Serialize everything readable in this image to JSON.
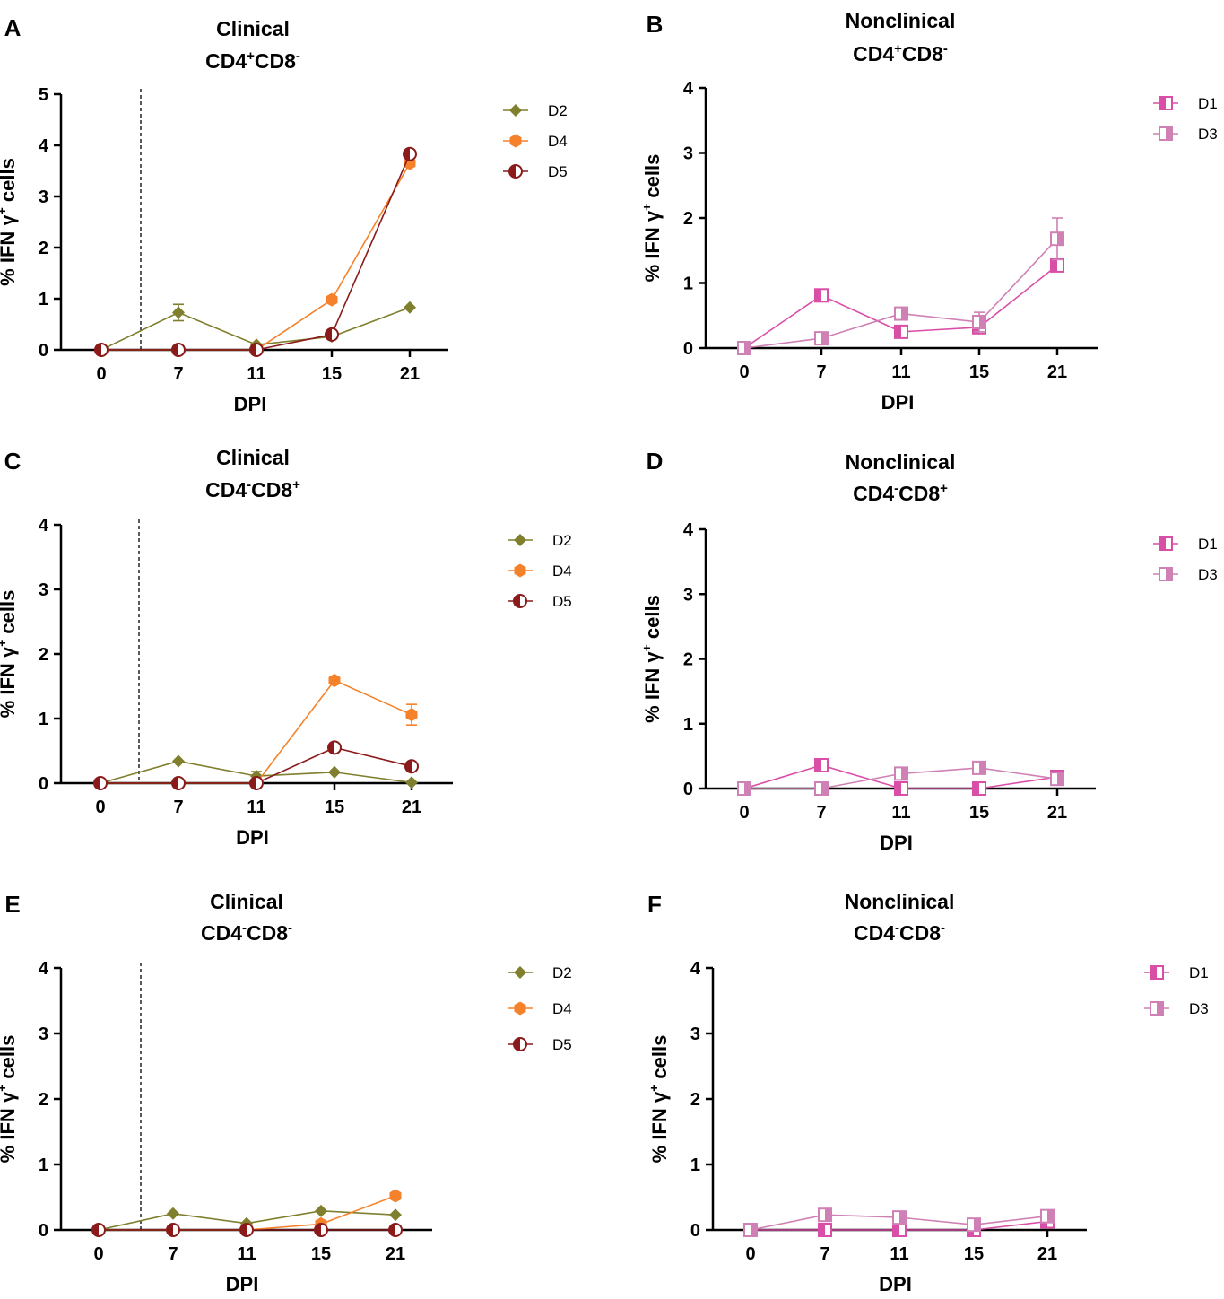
{
  "chart_data": [
    {
      "panel_letter": "A",
      "type": "line",
      "title": [
        "Clinical",
        "CD4",
        "+",
        "CD8",
        "-"
      ],
      "xlabel": "DPI",
      "ylabel_parts": [
        "% IFN γ",
        "+",
        " cells"
      ],
      "x": [
        0,
        7,
        11,
        15,
        21
      ],
      "ylim": [
        0,
        5
      ],
      "yticks": [
        0,
        1,
        2,
        3,
        4,
        5
      ],
      "vline_x": 3.5,
      "series": [
        {
          "name": "D2",
          "color": "#7f7f2d",
          "marker": "diamond",
          "values": [
            0.0,
            0.73,
            0.1,
            0.26,
            0.83
          ],
          "err": [
            0,
            0.16,
            0,
            0,
            0
          ]
        },
        {
          "name": "D4",
          "color": "#f5812a",
          "marker": "hexagon",
          "values": [
            0.0,
            0.0,
            0.0,
            0.98,
            3.65
          ],
          "err": [
            0,
            0,
            0,
            0,
            0
          ]
        },
        {
          "name": "D5",
          "color": "#8b1a1a",
          "marker": "halfcircle",
          "values": [
            0.0,
            0.0,
            0.0,
            0.3,
            3.83
          ],
          "err": [
            0,
            0,
            0,
            0,
            0
          ]
        }
      ]
    },
    {
      "panel_letter": "B",
      "type": "line",
      "title": [
        "Nonclinical",
        "CD4",
        "+",
        "CD8",
        "-"
      ],
      "xlabel": "DPI",
      "ylabel_parts": [
        "% IFN γ",
        "+",
        " cells"
      ],
      "x": [
        0,
        7,
        11,
        15,
        21
      ],
      "ylim": [
        0,
        4
      ],
      "yticks": [
        0,
        1,
        2,
        3,
        4
      ],
      "series": [
        {
          "name": "D1",
          "color": "#d94fa8",
          "marker": "halfsquare-left",
          "values": [
            0.0,
            0.81,
            0.25,
            0.32,
            1.27
          ],
          "err": [
            0,
            0,
            0,
            0,
            0
          ]
        },
        {
          "name": "D3",
          "color": "#cf80b4",
          "marker": "halfsquare-right",
          "values": [
            0.0,
            0.15,
            0.53,
            0.4,
            1.68
          ],
          "err": [
            0,
            0,
            0,
            0.15,
            0.32
          ]
        }
      ]
    },
    {
      "panel_letter": "C",
      "type": "line",
      "title": [
        "Clinical",
        "CD4",
        "-",
        "CD8",
        "+"
      ],
      "xlabel": "DPI",
      "ylabel_parts": [
        "% IFN γ",
        "+",
        " cells"
      ],
      "x": [
        0,
        7,
        11,
        15,
        21
      ],
      "ylim": [
        0,
        4
      ],
      "yticks": [
        0,
        1,
        2,
        3,
        4
      ],
      "vline_x": 3.5,
      "series": [
        {
          "name": "D2",
          "color": "#7f7f2d",
          "marker": "diamond",
          "values": [
            0.0,
            0.34,
            0.11,
            0.17,
            0.01
          ],
          "err": [
            0,
            0,
            0.07,
            0,
            0
          ]
        },
        {
          "name": "D4",
          "color": "#f5812a",
          "marker": "hexagon",
          "values": [
            0.0,
            0.0,
            0.0,
            1.59,
            1.06
          ],
          "err": [
            0,
            0,
            0,
            0,
            0.16
          ]
        },
        {
          "name": "D5",
          "color": "#8b1a1a",
          "marker": "halfcircle",
          "values": [
            0.0,
            0.0,
            0.0,
            0.55,
            0.26
          ],
          "err": [
            0,
            0,
            0,
            0,
            0
          ]
        }
      ]
    },
    {
      "panel_letter": "D",
      "type": "line",
      "title": [
        "Nonclinical",
        "CD4",
        "-",
        "CD8",
        "+"
      ],
      "xlabel": "DPI",
      "ylabel_parts": [
        "% IFN γ",
        "+",
        " cells"
      ],
      "x": [
        0,
        7,
        11,
        15,
        21
      ],
      "ylim": [
        0,
        4
      ],
      "yticks": [
        0,
        1,
        2,
        3,
        4
      ],
      "series": [
        {
          "name": "D1",
          "color": "#d94fa8",
          "marker": "halfsquare-left",
          "values": [
            0.0,
            0.36,
            0.0,
            0.0,
            0.18
          ],
          "err": [
            0,
            0,
            0,
            0,
            0
          ]
        },
        {
          "name": "D3",
          "color": "#cf80b4",
          "marker": "halfsquare-right",
          "values": [
            0.0,
            0.0,
            0.23,
            0.32,
            0.15
          ],
          "err": [
            0,
            0,
            0,
            0,
            0
          ]
        }
      ]
    },
    {
      "panel_letter": "E",
      "type": "line",
      "title": [
        "Clinical",
        "CD4",
        "-",
        "CD8",
        "-"
      ],
      "xlabel": "DPI",
      "ylabel_parts": [
        "% IFN γ",
        "+",
        " cells"
      ],
      "x": [
        0,
        7,
        11,
        15,
        21
      ],
      "ylim": [
        0,
        4
      ],
      "yticks": [
        0,
        1,
        2,
        3,
        4
      ],
      "vline_x": 3.5,
      "series": [
        {
          "name": "D2",
          "color": "#7f7f2d",
          "marker": "diamond",
          "values": [
            0.0,
            0.25,
            0.1,
            0.29,
            0.23
          ],
          "err": [
            0,
            0,
            0,
            0,
            0
          ]
        },
        {
          "name": "D4",
          "color": "#f5812a",
          "marker": "hexagon",
          "values": [
            0.0,
            0.0,
            0.0,
            0.09,
            0.52
          ],
          "err": [
            0,
            0,
            0,
            0,
            0
          ]
        },
        {
          "name": "D5",
          "color": "#8b1a1a",
          "marker": "halfcircle",
          "values": [
            0.0,
            0.0,
            0.0,
            0.0,
            0.0
          ],
          "err": [
            0,
            0,
            0,
            0,
            0
          ]
        }
      ]
    },
    {
      "panel_letter": "F",
      "type": "line",
      "title": [
        "Nonclinical",
        "CD4",
        "-",
        "CD8",
        "-"
      ],
      "xlabel": "DPI",
      "ylabel_parts": [
        "% IFN γ",
        "+",
        " cells"
      ],
      "x": [
        0,
        7,
        11,
        15,
        21
      ],
      "ylim": [
        0,
        4
      ],
      "yticks": [
        0,
        1,
        2,
        3,
        4
      ],
      "series": [
        {
          "name": "D1",
          "color": "#d94fa8",
          "marker": "halfsquare-left",
          "values": [
            0.0,
            0.0,
            0.0,
            0.0,
            0.13
          ],
          "err": [
            0,
            0,
            0,
            0,
            0
          ]
        },
        {
          "name": "D3",
          "color": "#cf80b4",
          "marker": "halfsquare-right",
          "values": [
            0.0,
            0.23,
            0.19,
            0.08,
            0.21
          ],
          "err": [
            0,
            0,
            0,
            0,
            0
          ]
        }
      ]
    }
  ]
}
